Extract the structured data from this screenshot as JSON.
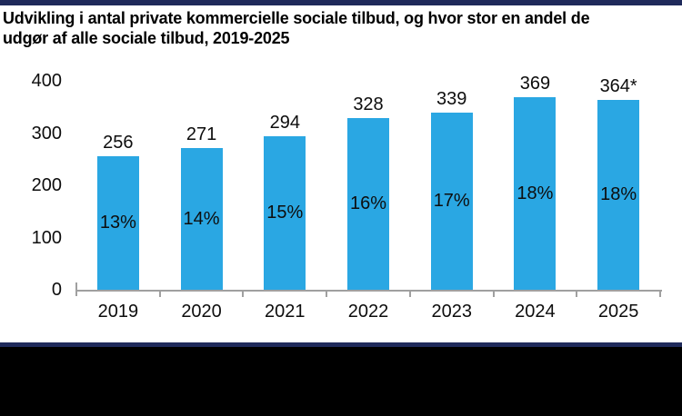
{
  "frame": {
    "background": "#ffffff",
    "top_border_color": "#1f2a5b",
    "divider_color": "#1f2a5b",
    "footer_color": "#000000"
  },
  "title_lines": [
    "Udvikling i antal private kommercielle sociale tilbud, og hvor stor en andel de",
    "udgør af alle sociale tilbud, 2019-2025"
  ],
  "chart_data": {
    "type": "bar",
    "title": "Udvikling i antal private kommercielle sociale tilbud, og hvor stor en andel de udgør af alle sociale tilbud, 2019-2025",
    "categories": [
      "2019",
      "2020",
      "2021",
      "2022",
      "2023",
      "2024",
      "2025"
    ],
    "values": [
      256,
      271,
      294,
      328,
      339,
      369,
      364
    ],
    "value_labels": [
      "256",
      "271",
      "294",
      "328",
      "339",
      "369",
      "364*"
    ],
    "percent_labels": [
      "13%",
      "14%",
      "15%",
      "16%",
      "17%",
      "18%",
      "18%"
    ],
    "xlabel": "",
    "ylabel": "",
    "ylim": [
      0,
      400
    ],
    "yticks": [
      0,
      100,
      200,
      300,
      400
    ],
    "grid": false,
    "legend": false,
    "bar_color": "#2aa7e3",
    "axis_color": "#a0a0a0",
    "text_color": "#0d0d0d"
  }
}
